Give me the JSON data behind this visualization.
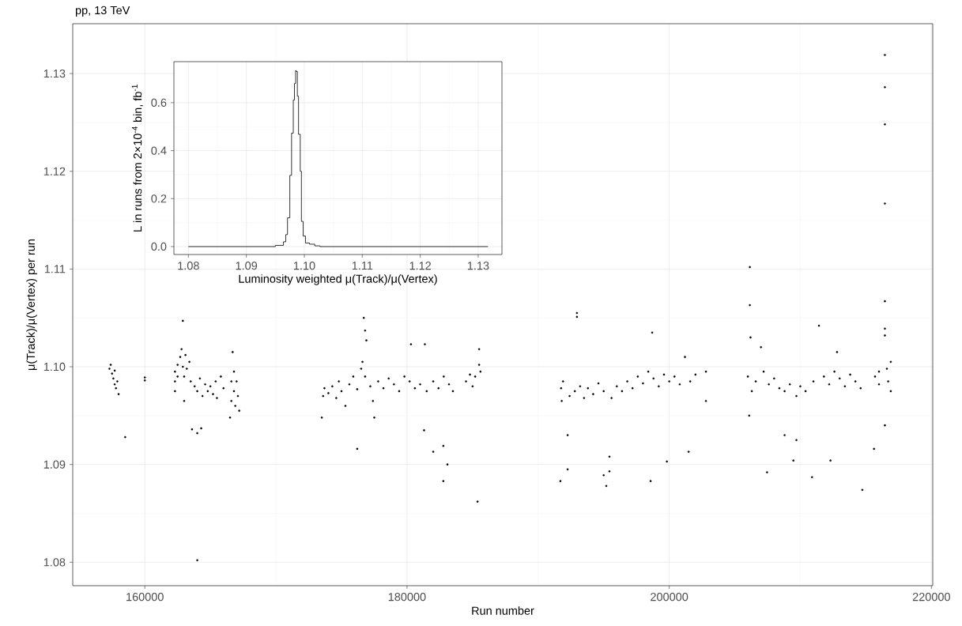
{
  "chart_data": [
    {
      "type": "scatter",
      "title": "pp, 13 TeV",
      "xlabel": "Run number",
      "ylabel": "μ(Track)/μ(Vertex) per run",
      "color": "#000000",
      "marker": "circle",
      "grid": true,
      "xlim": [
        154500,
        220100
      ],
      "ylim": [
        1.0776,
        1.1351
      ],
      "xticks": [
        160000,
        180000,
        200000,
        220000
      ],
      "yticks": [
        {
          "value": 1.08,
          "label": "1.08"
        },
        {
          "value": 1.09,
          "label": "1.09"
        },
        {
          "value": 1.1,
          "label": "1.10"
        },
        {
          "value": 1.11,
          "label": "1.11"
        },
        {
          "value": 1.12,
          "label": "1.12"
        },
        {
          "value": 1.13,
          "label": "1.13"
        }
      ],
      "x": [
        157300,
        157400,
        157500,
        157600,
        157700,
        157800,
        157900,
        158000,
        157700,
        158500,
        160000,
        160000,
        162300,
        162300,
        162300,
        162500,
        162500,
        162700,
        162800,
        162900,
        162900,
        163000,
        163000,
        163100,
        163200,
        163400,
        163500,
        163600,
        163800,
        164000,
        164000,
        164000,
        164200,
        164300,
        164400,
        164600,
        164800,
        165000,
        165200,
        165400,
        165500,
        165800,
        166000,
        166600,
        166600,
        166700,
        166800,
        166800,
        166900,
        167000,
        167100,
        167200,
        166500,
        173500,
        173600,
        173700,
        174000,
        174300,
        174600,
        174800,
        175000,
        175300,
        175600,
        175900,
        176200,
        176200,
        176500,
        176600,
        176700,
        176800,
        176900,
        176800,
        177200,
        177400,
        177500,
        177800,
        178200,
        178600,
        179000,
        179400,
        179800,
        180200,
        180300,
        180600,
        181000,
        181300,
        181360,
        181500,
        182000,
        182000,
        182400,
        182770,
        182770,
        182800,
        183080,
        183200,
        183500,
        184500,
        184800,
        185000,
        185200,
        185380,
        185500,
        185600,
        185500,
        191700,
        191750,
        191800,
        191900,
        192250,
        192250,
        192400,
        192800,
        192960,
        192960,
        193200,
        193500,
        193800,
        194200,
        194600,
        195000,
        195440,
        195000,
        195440,
        195200,
        195600,
        196000,
        196400,
        196800,
        197200,
        197600,
        198000,
        198400,
        198580,
        198700,
        198800,
        199200,
        199600,
        199820,
        200000,
        200400,
        200800,
        201200,
        201480,
        201600,
        202000,
        202800,
        202800,
        206000,
        206100,
        206150,
        206150,
        206200,
        206300,
        206600,
        207000,
        207460,
        207200,
        207600,
        208000,
        208400,
        208800,
        208800,
        209200,
        209470,
        209700,
        209700,
        210000,
        210400,
        210890,
        211000,
        211420,
        211800,
        212200,
        212300,
        212600,
        212800,
        213000,
        213400,
        213800,
        214200,
        214730,
        214600,
        215620,
        215700,
        216000,
        216000,
        216450,
        216450,
        216450,
        216450,
        216450,
        216450,
        216450,
        216450,
        216600,
        216700,
        216900,
        216900
      ],
      "values": [
        1.0998,
        1.1002,
        1.0993,
        1.0988,
        1.0982,
        1.0978,
        1.0985,
        1.0972,
        1.0996,
        1.0928,
        1.0989,
        1.0986,
        1.0995,
        1.0985,
        1.0975,
        1.1002,
        1.099,
        1.101,
        1.1018,
        1.1047,
        1.1,
        1.099,
        1.0965,
        1.1012,
        1.0998,
        1.1005,
        1.0985,
        1.0936,
        1.098,
        1.0975,
        1.0932,
        1.0802,
        1.0988,
        1.0937,
        1.097,
        1.0982,
        1.0975,
        1.098,
        1.0972,
        1.0985,
        1.0968,
        1.099,
        1.0978,
        1.0985,
        1.0965,
        1.1015,
        1.0995,
        1.0975,
        1.096,
        1.0985,
        1.097,
        1.0955,
        1.0948,
        1.0948,
        1.097,
        1.0978,
        1.0973,
        1.098,
        1.0968,
        1.0985,
        1.0975,
        1.096,
        1.0982,
        1.099,
        1.0977,
        1.0916,
        1.0998,
        1.1005,
        1.105,
        1.1037,
        1.1027,
        1.099,
        1.098,
        1.0965,
        1.0948,
        1.0985,
        1.0978,
        1.0988,
        1.0982,
        1.0975,
        1.099,
        1.0985,
        1.1023,
        1.0978,
        1.0982,
        1.0935,
        1.1023,
        1.0975,
        1.0913,
        1.0985,
        1.0978,
        1.0919,
        1.0883,
        1.099,
        1.09,
        1.0982,
        1.0975,
        1.0985,
        1.0992,
        1.098,
        1.099,
        1.0862,
        1.1002,
        1.0995,
        1.1018,
        1.0883,
        1.0978,
        1.0965,
        1.0985,
        1.093,
        1.0895,
        1.097,
        1.0975,
        1.1055,
        1.1051,
        1.098,
        1.0968,
        1.0978,
        1.0972,
        1.0983,
        1.0975,
        1.0908,
        1.0889,
        1.0893,
        1.0878,
        1.0968,
        1.098,
        1.0975,
        1.0985,
        1.0978,
        1.099,
        1.0983,
        1.0995,
        1.0883,
        1.1035,
        1.0988,
        1.098,
        1.0992,
        1.0903,
        1.0985,
        1.099,
        1.0982,
        1.101,
        1.0913,
        1.0985,
        1.0992,
        1.0995,
        1.0965,
        1.099,
        1.095,
        1.1102,
        1.1063,
        1.103,
        1.0975,
        1.0985,
        1.102,
        1.0892,
        1.0995,
        1.0982,
        1.0988,
        1.0978,
        1.093,
        1.0975,
        1.0982,
        1.0904,
        1.0925,
        1.097,
        1.098,
        1.0975,
        1.0887,
        1.0985,
        1.1042,
        1.099,
        1.0982,
        1.0904,
        1.0995,
        1.1015,
        1.0988,
        1.098,
        1.0992,
        1.0985,
        1.0874,
        1.0978,
        1.0916,
        1.099,
        1.0982,
        1.0995,
        1.1319,
        1.1286,
        1.1248,
        1.1167,
        1.1067,
        1.1039,
        1.1032,
        1.094,
        1.0998,
        1.0985,
        1.0975,
        1.1005
      ]
    },
    {
      "type": "step",
      "xlabel": "Luminosity weighted μ(Track)/μ(Vertex)",
      "ylabel": "L in runs from 2×10$^{-4}$ bin, fb$^{-1}$",
      "color": "#000000",
      "grid": true,
      "xlim": [
        1.0775,
        1.1341
      ],
      "ylim": [
        -0.033,
        0.771
      ],
      "xticks": [
        {
          "value": 1.08,
          "label": "1.08"
        },
        {
          "value": 1.09,
          "label": "1.09"
        },
        {
          "value": 1.1,
          "label": "1.10"
        },
        {
          "value": 1.11,
          "label": "1.11"
        },
        {
          "value": 1.12,
          "label": "1.12"
        },
        {
          "value": 1.13,
          "label": "1.13"
        }
      ],
      "yticks": [
        {
          "value": 0,
          "label": "0.0"
        },
        {
          "value": 0.2,
          "label": "0.2"
        },
        {
          "value": 0.4,
          "label": "0.4"
        },
        {
          "value": 0.6,
          "label": "0.6"
        }
      ],
      "x": [
        1.08,
        1.095,
        1.0964,
        1.0968,
        1.0971,
        1.0975,
        1.0978,
        1.0981,
        1.0983,
        1.0985,
        1.0986,
        1.0988,
        1.099,
        1.0993,
        1.0995,
        1.0998,
        1.1002,
        1.1009,
        1.1018,
        1.1027,
        1.1317
      ],
      "values": [
        0,
        0.005,
        0.02,
        0.05,
        0.12,
        0.297,
        0.473,
        0.611,
        0.68,
        0.734,
        0.73,
        0.627,
        0.468,
        0.314,
        0.105,
        0.044,
        0.015,
        0.01,
        0.003,
        0,
        0
      ]
    }
  ]
}
